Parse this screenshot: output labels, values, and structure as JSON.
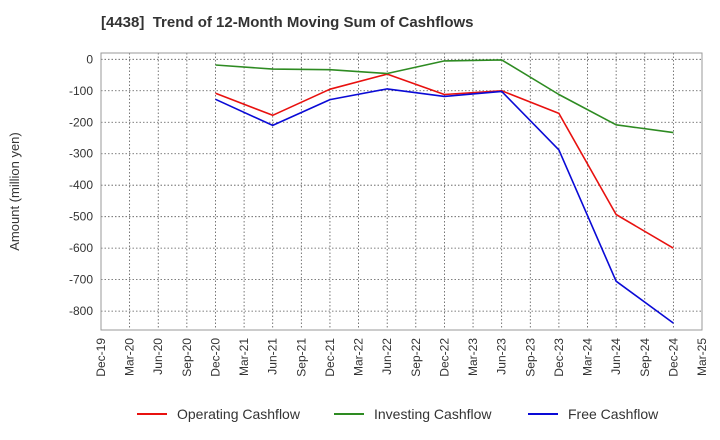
{
  "chart_data": {
    "type": "line",
    "title": "[4438]  Trend of 12-Month Moving Sum of Cashflows",
    "ylabel": "Amount (million yen)",
    "xlabel": "",
    "ylim": [
      -860,
      20
    ],
    "yticks": [
      0,
      -100,
      -200,
      -300,
      -400,
      -500,
      -600,
      -700,
      -800
    ],
    "categories": [
      "Dec-19",
      "Mar-20",
      "Jun-20",
      "Sep-20",
      "Dec-20",
      "Mar-21",
      "Jun-21",
      "Sep-21",
      "Dec-21",
      "Mar-22",
      "Jun-22",
      "Sep-22",
      "Dec-22",
      "Mar-23",
      "Jun-23",
      "Sep-23",
      "Dec-23",
      "Mar-24",
      "Jun-24",
      "Sep-24",
      "Dec-24",
      "Mar-25"
    ],
    "grid": true,
    "legend_position": "bottom",
    "series": [
      {
        "name": "Operating Cashflow",
        "color": "#e8110f",
        "values": [
          null,
          null,
          null,
          null,
          -108,
          null,
          -178,
          null,
          -95,
          null,
          -47,
          null,
          -112,
          null,
          -100,
          null,
          -172,
          null,
          -493,
          null,
          -600,
          null
        ]
      },
      {
        "name": "Investing Cashflow",
        "color": "#2e8b22",
        "values": [
          null,
          null,
          null,
          null,
          -18,
          null,
          -31,
          null,
          -33,
          null,
          -45,
          null,
          -5,
          null,
          -2,
          null,
          -112,
          null,
          -208,
          null,
          -233,
          null
        ]
      },
      {
        "name": "Free Cashflow",
        "color": "#0a0ad6",
        "values": [
          null,
          null,
          null,
          null,
          -127,
          null,
          -210,
          null,
          -128,
          null,
          -94,
          null,
          -118,
          null,
          -102,
          null,
          -288,
          null,
          -705,
          null,
          -838,
          null
        ]
      }
    ]
  }
}
